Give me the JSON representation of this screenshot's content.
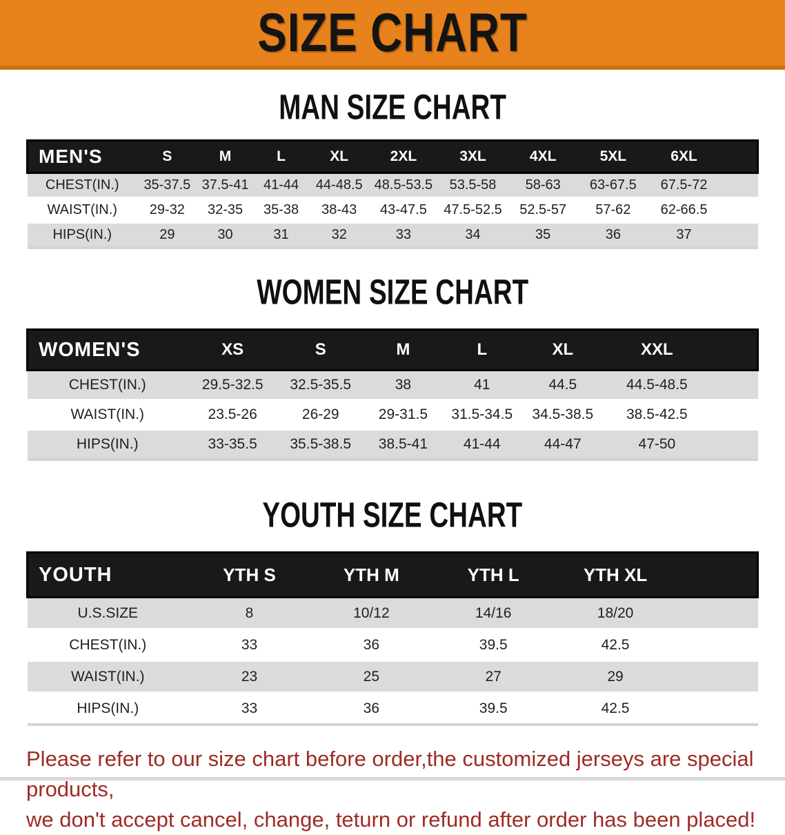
{
  "banner": {
    "title": "SIZE CHART",
    "bg_color": "#E8821C"
  },
  "sections": [
    {
      "heading": "MAN SIZE CHART",
      "table": {
        "columns": [
          "MEN'S",
          "S",
          "M",
          "L",
          "XL",
          "2XL",
          "3XL",
          "4XL",
          "5XL",
          "6XL"
        ],
        "rows": [
          {
            "label": "CHEST(IN.)",
            "values": [
              "35-37.5",
              "37.5-41",
              "41-44",
              "44-48.5",
              "48.5-53.5",
              "53.5-58",
              "58-63",
              "63-67.5",
              "67.5-72"
            ]
          },
          {
            "label": "WAIST(IN.)",
            "values": [
              "29-32",
              "32-35",
              "35-38",
              "38-43",
              "43-47.5",
              "47.5-52.5",
              "52.5-57",
              "57-62",
              "62-66.5"
            ]
          },
          {
            "label": "HIPS(IN.)",
            "values": [
              "29",
              "30",
              "31",
              "32",
              "33",
              "34",
              "35",
              "36",
              "37"
            ]
          }
        ]
      }
    },
    {
      "heading": "WOMEN SIZE CHART",
      "table": {
        "columns": [
          "WOMEN'S",
          "XS",
          "S",
          "M",
          "L",
          "XL",
          "XXL"
        ],
        "rows": [
          {
            "label": "CHEST(IN.)",
            "values": [
              "29.5-32.5",
              "32.5-35.5",
              "38",
              "41",
              "44.5",
              "44.5-48.5"
            ]
          },
          {
            "label": "WAIST(IN.)",
            "values": [
              "23.5-26",
              "26-29",
              "29-31.5",
              "31.5-34.5",
              "34.5-38.5",
              "38.5-42.5"
            ]
          },
          {
            "label": "HIPS(IN.)",
            "values": [
              "33-35.5",
              "35.5-38.5",
              "38.5-41",
              "41-44",
              "44-47",
              "47-50"
            ]
          }
        ]
      }
    },
    {
      "heading": "YOUTH SIZE CHART",
      "table": {
        "columns": [
          "YOUTH",
          "YTH S",
          "YTH M",
          "YTH L",
          "YTH XL"
        ],
        "rows": [
          {
            "label": "U.S.SIZE",
            "values": [
              "8",
              "10/12",
              "14/16",
              "18/20"
            ]
          },
          {
            "label": "CHEST(IN.)",
            "values": [
              "33",
              "36",
              "39.5",
              "42.5"
            ]
          },
          {
            "label": "WAIST(IN.)",
            "values": [
              "23",
              "25",
              "27",
              "29"
            ]
          },
          {
            "label": "HIPS(IN.)",
            "values": [
              "33",
              "36",
              "39.5",
              "42.5"
            ]
          }
        ]
      }
    }
  ],
  "disclaimer": {
    "line1": "Please refer to our size chart before order,the customized jerseys are special products,",
    "line2": "we don't accept cancel, change, teturn or refund after order has been placed!",
    "color": "#9E2B24"
  }
}
